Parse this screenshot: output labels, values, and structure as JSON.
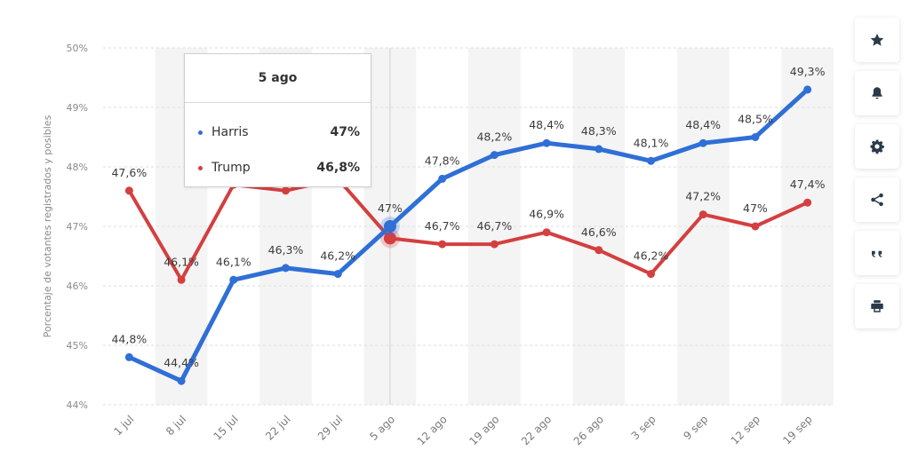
{
  "chart_data": {
    "type": "line",
    "title": "",
    "xlabel": "",
    "ylabel": "Porcentaje de votantes registrados y posibles",
    "categories": [
      "1 jul",
      "8 jul",
      "15 jul",
      "22 jul",
      "29 jul",
      "5 ago",
      "12 ago",
      "19 ago",
      "22 ago",
      "26 ago",
      "3 sep",
      "9 sep",
      "12 sep",
      "19 sep"
    ],
    "ylim": [
      44,
      50
    ],
    "yticks": [
      "44%",
      "45%",
      "46%",
      "47%",
      "48%",
      "49%",
      "50%"
    ],
    "grid": true,
    "series": [
      {
        "name": "Harris",
        "color": "#2f6fd6",
        "values": [
          44.8,
          44.4,
          46.1,
          46.3,
          46.2,
          47.0,
          47.8,
          48.2,
          48.4,
          48.3,
          48.1,
          48.4,
          48.5,
          49.3
        ],
        "labels": [
          "44,8%",
          "44,4%",
          "46,1%",
          "46,3%",
          "46,2%",
          "47%",
          "47,8%",
          "48,2%",
          "48,4%",
          "48,3%",
          "48,1%",
          "48,4%",
          "48,5%",
          "49,3%"
        ]
      },
      {
        "name": "Trump",
        "color": "#d43f3f",
        "values": [
          47.6,
          46.1,
          47.7,
          47.6,
          47.8,
          46.8,
          46.7,
          46.7,
          46.9,
          46.6,
          46.2,
          47.2,
          47.0,
          47.4
        ],
        "labels": [
          "47,6%",
          "46,1%",
          "",
          "",
          "",
          "",
          "46,7%",
          "46,7%",
          "46,9%",
          "46,6%",
          "46,2%",
          "47,2%",
          "47%",
          "47,4%"
        ]
      }
    ],
    "highlight_index": 5
  },
  "tooltip": {
    "title": "5 ago",
    "rows": [
      {
        "name": "Harris",
        "value": "47%",
        "color": "#2f6fd6"
      },
      {
        "name": "Trump",
        "value": "46,8%",
        "color": "#d43f3f"
      }
    ]
  },
  "toolbar": [
    {
      "name": "star",
      "icon": "star-icon"
    },
    {
      "name": "notifications",
      "icon": "bell-icon"
    },
    {
      "name": "settings",
      "icon": "gear-icon"
    },
    {
      "name": "share",
      "icon": "share-icon"
    },
    {
      "name": "cite",
      "icon": "quote-icon"
    },
    {
      "name": "print",
      "icon": "print-icon"
    }
  ]
}
